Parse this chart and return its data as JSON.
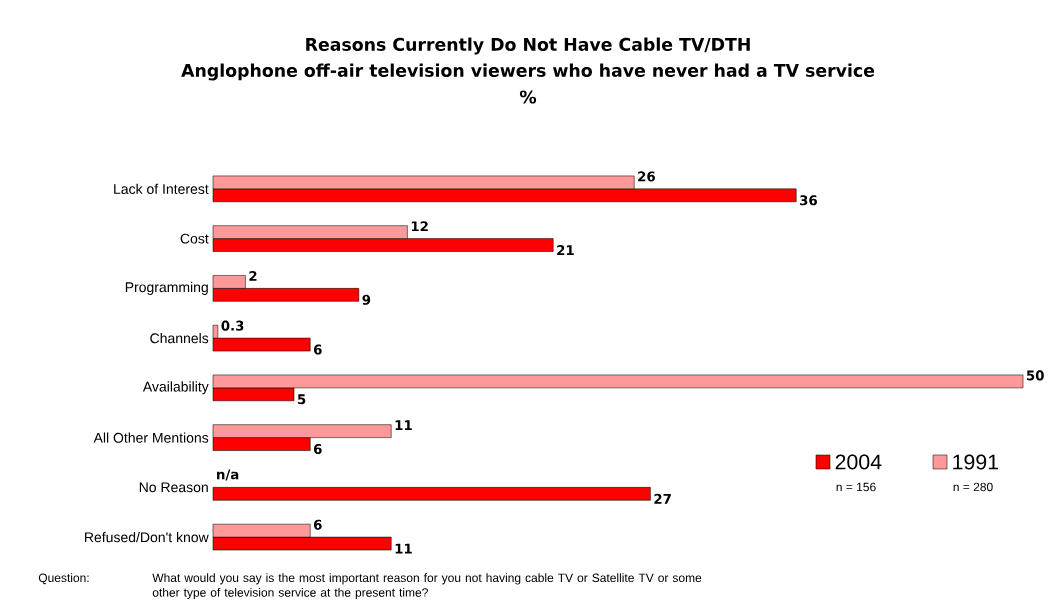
{
  "chart_data": {
    "type": "bar",
    "orientation": "horizontal",
    "title": "Reasons Currently Do Not Have Cable TV/DTH",
    "subtitle": "Anglophone off-air television viewers who have never had a TV service",
    "categories": [
      "Lack of Interest",
      "Cost",
      "Programming",
      "Channels",
      "Availability",
      "All Other Mentions",
      "No Reason",
      "Refused/Don't know"
    ],
    "series": [
      {
        "name": "2004",
        "color": "#ff0000",
        "values": [
          36,
          21,
          9,
          6,
          5,
          6,
          27,
          11
        ],
        "value_labels": [
          "36",
          "21",
          "9",
          "6",
          "5",
          "6",
          "27",
          "11"
        ]
      },
      {
        "name": "1991",
        "color": "#ff9999",
        "values": [
          26,
          12,
          2,
          0.3,
          50,
          11,
          null,
          6
        ],
        "value_labels": [
          "26",
          "12",
          "2",
          "0.3",
          "50",
          "11",
          "n/a",
          "6"
        ]
      }
    ],
    "legend": "bottom right",
    "annotations": [
      "%",
      "n = 156",
      "n = 280",
      "Question:",
      "What would you say is the most important reason for you not having cable TV or Satellite TV or some other type of television service at the present time?"
    ]
  }
}
